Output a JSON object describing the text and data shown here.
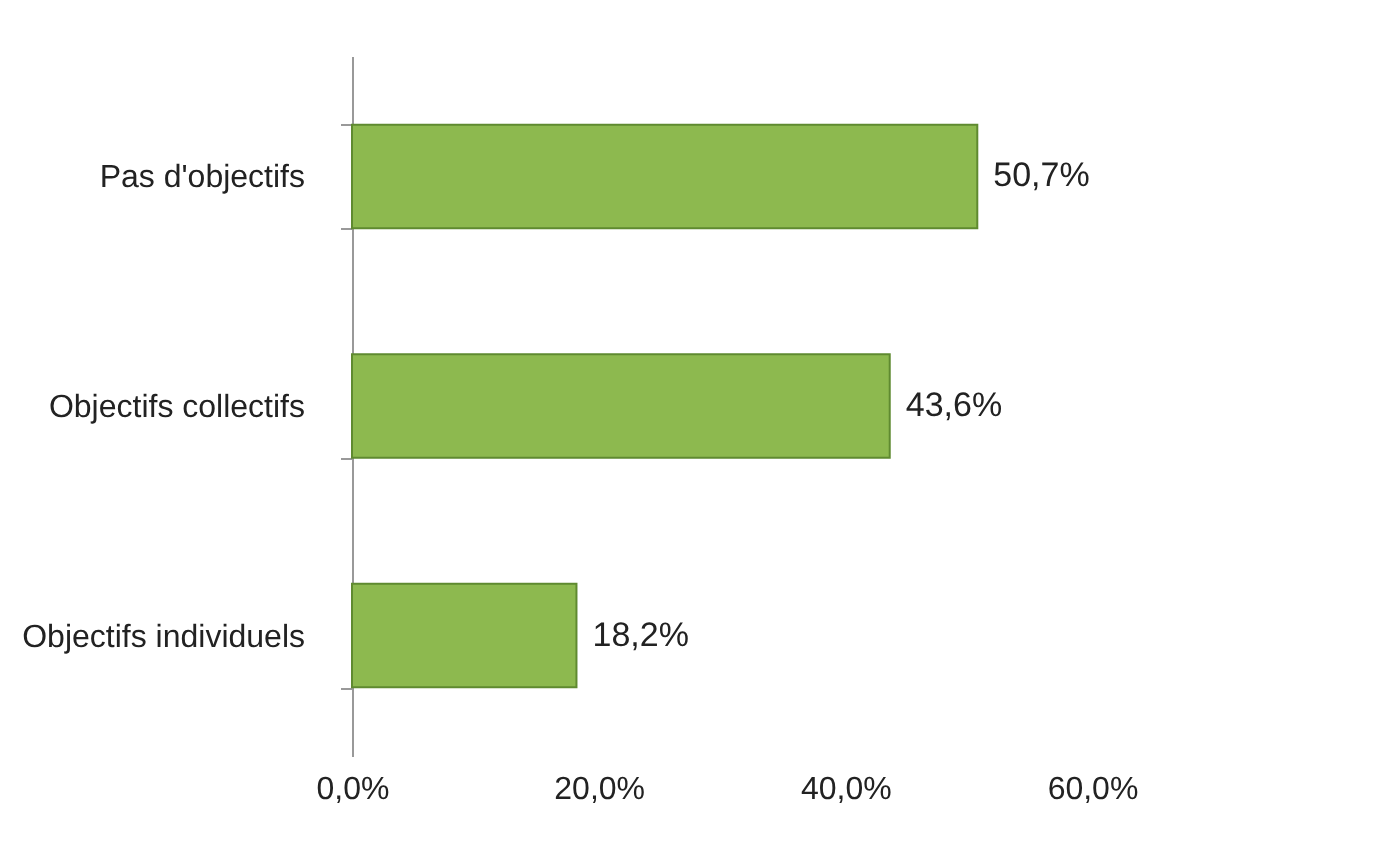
{
  "chart_data": {
    "type": "bar",
    "orientation": "horizontal",
    "categories": [
      "Pas d'objectifs",
      "Objectifs collectifs",
      "Objectifs individuels"
    ],
    "values": [
      50.7,
      43.6,
      18.2
    ],
    "value_labels": [
      "50,7%",
      "43,6%",
      "18,2%"
    ],
    "color": "#8db94f",
    "xlim": [
      0,
      60
    ],
    "xticks": [
      {
        "value": 0,
        "label": "0,0%"
      },
      {
        "value": 20,
        "label": "20,0%"
      },
      {
        "value": 40,
        "label": "40,0%"
      },
      {
        "value": 60,
        "label": "60,0%"
      }
    ],
    "grid": false
  }
}
